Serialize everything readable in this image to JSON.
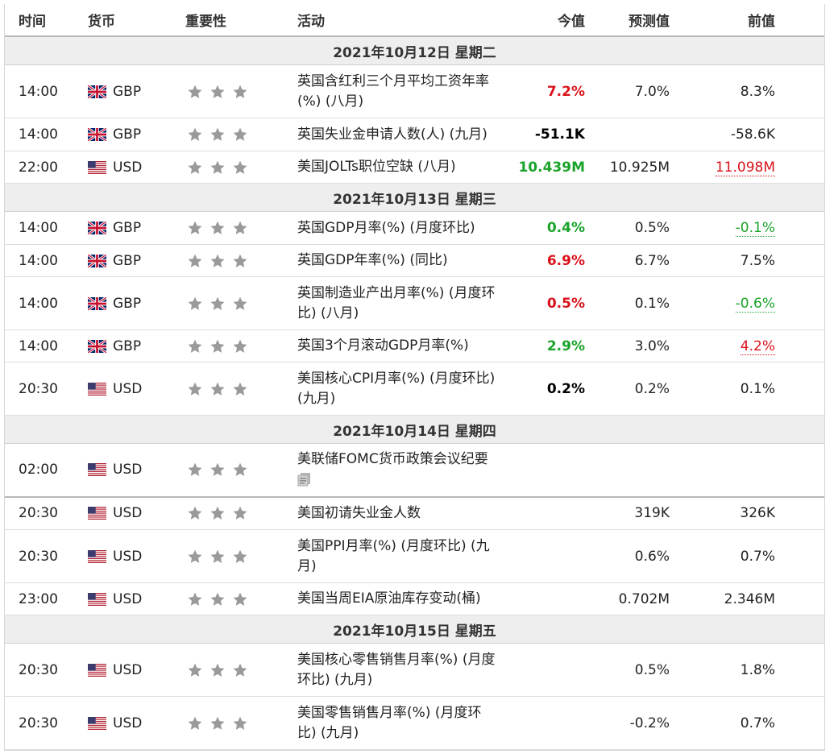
{
  "headers": {
    "time": "时间",
    "currency": "货币",
    "importance": "重要性",
    "event": "活动",
    "actual": "今值",
    "forecast": "预测值",
    "previous": "前值"
  },
  "days": [
    {
      "date": "2021年10月12日  星期二",
      "rows": [
        {
          "time": "14:00",
          "flag": "gb",
          "currency": "GBP",
          "event": "英国含红利三个月平均工资年率(%) (八月)",
          "actual": "7.2%",
          "actual_style": "neg",
          "forecast": "7.0%",
          "previous": "8.3%",
          "previous_style": ""
        },
        {
          "time": "14:00",
          "flag": "gb",
          "currency": "GBP",
          "event": "英国失业金申请人数(人) (九月)",
          "actual": "-51.1K",
          "actual_style": "neu",
          "forecast": "",
          "previous": "-58.6K",
          "previous_style": ""
        },
        {
          "time": "22:00",
          "flag": "us",
          "currency": "USD",
          "event": "美国JOLTs职位空缺 (八月)",
          "actual": "10.439M",
          "actual_style": "pos",
          "forecast": "10.925M",
          "previous": "11.098M",
          "previous_style": "prev-neg"
        }
      ]
    },
    {
      "date": "2021年10月13日  星期三",
      "rows": [
        {
          "time": "14:00",
          "flag": "gb",
          "currency": "GBP",
          "event": "英国GDP月率(%) (月度环比)",
          "actual": "0.4%",
          "actual_style": "pos",
          "forecast": "0.5%",
          "previous": "-0.1%",
          "previous_style": "prev-pos"
        },
        {
          "time": "14:00",
          "flag": "gb",
          "currency": "GBP",
          "event": "英国GDP年率(%) (同比)",
          "actual": "6.9%",
          "actual_style": "neg",
          "forecast": "6.7%",
          "previous": "7.5%",
          "previous_style": ""
        },
        {
          "time": "14:00",
          "flag": "gb",
          "currency": "GBP",
          "event": "英国制造业产出月率(%) (月度环比) (八月)",
          "actual": "0.5%",
          "actual_style": "neg",
          "forecast": "0.1%",
          "previous": "-0.6%",
          "previous_style": "prev-pos"
        },
        {
          "time": "14:00",
          "flag": "gb",
          "currency": "GBP",
          "event": "英国3个月滚动GDP月率(%)",
          "actual": "2.9%",
          "actual_style": "pos",
          "forecast": "3.0%",
          "previous": "4.2%",
          "previous_style": "prev-neg"
        },
        {
          "time": "20:30",
          "flag": "us",
          "currency": "USD",
          "event": "美国核心CPI月率(%) (月度环比) (九月)",
          "actual": "0.2%",
          "actual_style": "neu",
          "forecast": "0.2%",
          "previous": "0.1%",
          "previous_style": ""
        }
      ]
    },
    {
      "date": "2021年10月14日  星期四",
      "rows": [
        {
          "time": "02:00",
          "flag": "us",
          "currency": "USD",
          "event": "美联储FOMC货币政策会议纪要",
          "actual": "",
          "actual_style": "",
          "forecast": "",
          "previous": "",
          "previous_style": "",
          "doc_icon": "document-icon",
          "thick": true
        },
        {
          "time": "20:30",
          "flag": "us",
          "currency": "USD",
          "event": "美国初请失业金人数",
          "actual": "",
          "actual_style": "",
          "forecast": "319K",
          "previous": "326K",
          "previous_style": ""
        },
        {
          "time": "20:30",
          "flag": "us",
          "currency": "USD",
          "event": "美国PPI月率(%) (月度环比) (九月)",
          "actual": "",
          "actual_style": "",
          "forecast": "0.6%",
          "previous": "0.7%",
          "previous_style": ""
        },
        {
          "time": "23:00",
          "flag": "us",
          "currency": "USD",
          "event": "美国当周EIA原油库存变动(桶)",
          "actual": "",
          "actual_style": "",
          "forecast": "0.702M",
          "previous": "2.346M",
          "previous_style": ""
        }
      ]
    },
    {
      "date": "2021年10月15日  星期五",
      "rows": [
        {
          "time": "20:30",
          "flag": "us",
          "currency": "USD",
          "event": "美国核心零售销售月率(%) (月度环比) (九月)",
          "actual": "",
          "actual_style": "",
          "forecast": "0.5%",
          "previous": "1.8%",
          "previous_style": ""
        },
        {
          "time": "20:30",
          "flag": "us",
          "currency": "USD",
          "event": "美国零售销售月率(%) (月度环比) (九月)",
          "actual": "",
          "actual_style": "",
          "forecast": "-0.2%",
          "previous": "0.7%",
          "previous_style": ""
        }
      ]
    }
  ],
  "importance_icon": "star-icon",
  "colors": {
    "positive": "#1aa32a",
    "negative": "#d9121b",
    "star": "#9a9a9a",
    "day_bg": "#eeeeee"
  }
}
